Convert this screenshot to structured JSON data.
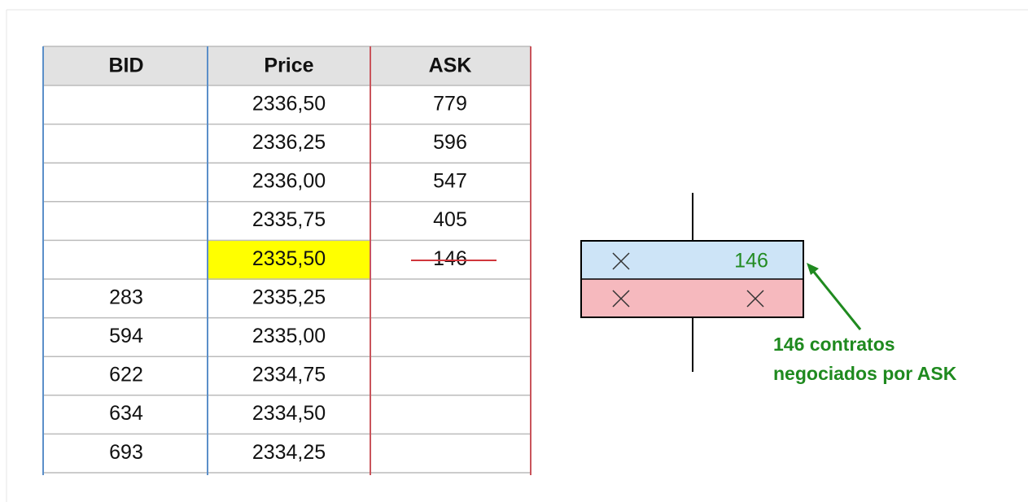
{
  "table": {
    "header": [
      "BID",
      "Price",
      "ASK"
    ],
    "rows": [
      [
        null,
        "2336,50",
        "779"
      ],
      [
        null,
        "2336,25",
        "596"
      ],
      [
        null,
        "2336,00",
        "547"
      ],
      [
        null,
        "2335,75",
        "405"
      ],
      [
        null,
        "2335,50",
        "146"
      ],
      [
        "283",
        "2335,25",
        null
      ],
      [
        "594",
        "2335,00",
        null
      ],
      [
        "622",
        "2334,75",
        null
      ],
      [
        "634",
        "2334,50",
        null
      ],
      [
        "693",
        "2334,25",
        null
      ]
    ]
  },
  "candle": {
    "ask_value": "146",
    "annotation": [
      "146 contratos",
      "negociados por ASK"
    ]
  }
}
